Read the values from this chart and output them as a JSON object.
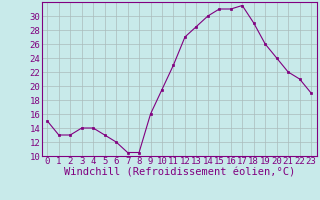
{
  "x": [
    0,
    1,
    2,
    3,
    4,
    5,
    6,
    7,
    8,
    9,
    10,
    11,
    12,
    13,
    14,
    15,
    16,
    17,
    18,
    19,
    20,
    21,
    22,
    23
  ],
  "y": [
    15,
    13,
    13,
    14,
    14,
    13,
    12,
    10.5,
    10.5,
    16,
    19.5,
    23,
    27,
    28.5,
    30,
    31,
    31,
    31.5,
    29,
    26,
    24,
    22,
    21,
    19
  ],
  "line_color": "#800080",
  "marker_color": "#800080",
  "bg_color": "#c8eaea",
  "grid_color": "#aabbbb",
  "xlabel": "Windchill (Refroidissement éolien,°C)",
  "ylim": [
    10,
    32
  ],
  "xlim": [
    -0.5,
    23.5
  ],
  "yticks": [
    10,
    12,
    14,
    16,
    18,
    20,
    22,
    24,
    26,
    28,
    30
  ],
  "xticks": [
    0,
    1,
    2,
    3,
    4,
    5,
    6,
    7,
    8,
    9,
    10,
    11,
    12,
    13,
    14,
    15,
    16,
    17,
    18,
    19,
    20,
    21,
    22,
    23
  ],
  "tick_label_fontsize": 6.5,
  "xlabel_fontsize": 7.5
}
